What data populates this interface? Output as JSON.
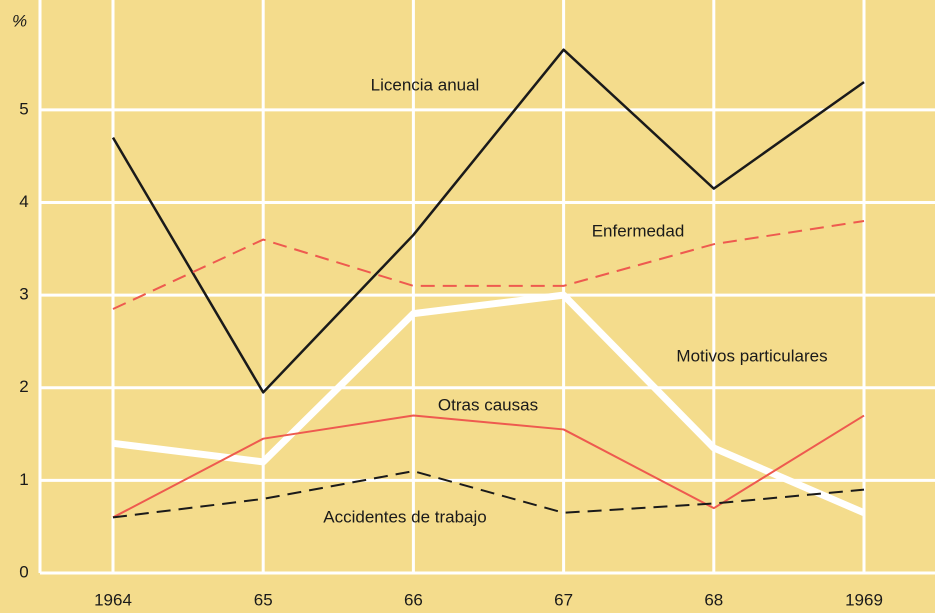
{
  "chart_data": {
    "type": "line",
    "ylabel": "%",
    "categories": [
      "1964",
      "65",
      "66",
      "67",
      "68",
      "1969"
    ],
    "ylim": [
      0,
      6.1
    ],
    "yticks": [
      0,
      1,
      2,
      3,
      4,
      5
    ],
    "grid": true,
    "series": [
      {
        "name": "Licencia anual",
        "color": "#1a1a1a",
        "style": "solid",
        "width": 2.5,
        "values": [
          4.7,
          1.95,
          3.65,
          5.65,
          4.15,
          5.3
        ]
      },
      {
        "name": "Enfermedad",
        "color": "#ee5a4f",
        "style": "dashed",
        "width": 2,
        "values": [
          2.85,
          3.6,
          3.1,
          3.1,
          3.55,
          3.8
        ]
      },
      {
        "name": "Motivos particulares",
        "color": "#ffffff",
        "style": "solid",
        "width": 7,
        "values": [
          1.4,
          1.2,
          2.8,
          3.0,
          1.35,
          0.65
        ]
      },
      {
        "name": "Otras causas",
        "color": "#ee5a4f",
        "style": "solid",
        "width": 2,
        "values": [
          0.6,
          1.45,
          1.7,
          1.55,
          0.7,
          1.7
        ]
      },
      {
        "name": "Accidentes de trabajo",
        "color": "#1a1a1a",
        "style": "dashed",
        "width": 2,
        "values": [
          0.6,
          0.8,
          1.1,
          0.65,
          0.75,
          0.9
        ]
      }
    ]
  }
}
